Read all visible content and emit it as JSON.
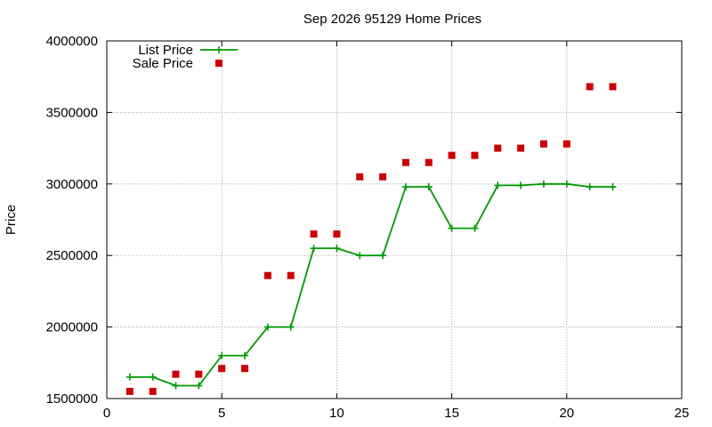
{
  "chart_data": {
    "type": "line",
    "title": "Sep 2026 95129 Home Prices",
    "xlabel": "",
    "ylabel": "Price",
    "xlim": [
      0,
      25
    ],
    "ylim": [
      1500000,
      4000000
    ],
    "x_ticks": [
      0,
      5,
      10,
      15,
      20,
      25
    ],
    "y_ticks": [
      1500000,
      2000000,
      2500000,
      3000000,
      3500000,
      4000000
    ],
    "grid": true,
    "legend_position": "top-left",
    "series": [
      {
        "name": "List Price",
        "style": "line-with-points",
        "color": "#009900",
        "x": [
          1,
          2,
          3,
          4,
          5,
          6,
          7,
          8,
          9,
          10,
          11,
          12,
          13,
          14,
          15,
          16,
          17,
          18,
          19,
          20,
          21,
          22
        ],
        "y": [
          1650000,
          1650000,
          1590000,
          1590000,
          1800000,
          1800000,
          2000000,
          2000000,
          2550000,
          2550000,
          2500000,
          2500000,
          2980000,
          2980000,
          2690000,
          2690000,
          2990000,
          2990000,
          3000000,
          3000000,
          2980000,
          2980000
        ]
      },
      {
        "name": "Sale Price",
        "style": "points",
        "color": "#cc0000",
        "x": [
          1,
          2,
          3,
          4,
          5,
          6,
          7,
          8,
          9,
          10,
          11,
          12,
          13,
          14,
          15,
          16,
          17,
          18,
          19,
          20,
          21,
          22
        ],
        "y": [
          1550000,
          1550000,
          1670000,
          1670000,
          1710000,
          1710000,
          2360000,
          2360000,
          2650000,
          2650000,
          3050000,
          3050000,
          3150000,
          3150000,
          3200000,
          3200000,
          3250000,
          3250000,
          3280000,
          3280000,
          3680000,
          3680000
        ]
      }
    ]
  }
}
